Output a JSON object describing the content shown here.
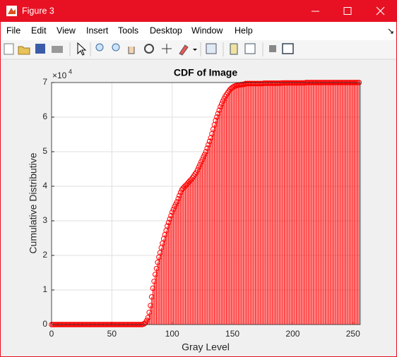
{
  "window": {
    "title": "Figure 3",
    "menu": [
      "File",
      "Edit",
      "View",
      "Insert",
      "Tools",
      "Desktop",
      "Window",
      "Help"
    ]
  },
  "chart_data": {
    "type": "stem",
    "title": "CDF of Image",
    "xlabel": "Gray Level",
    "ylabel": "Cumulative Distributive",
    "y_exponent_base": "×10",
    "y_exponent": "4",
    "color": "#ff0000",
    "grid": true,
    "xlim": [
      0,
      256
    ],
    "ylim": [
      0,
      7
    ],
    "xticks": [
      0,
      50,
      100,
      150,
      200,
      250
    ],
    "yticks": [
      0,
      1,
      2,
      3,
      4,
      5,
      6,
      7
    ],
    "x": [
      0,
      1,
      2,
      3,
      4,
      5,
      6,
      7,
      8,
      9,
      10,
      11,
      12,
      13,
      14,
      15,
      16,
      17,
      18,
      19,
      20,
      21,
      22,
      23,
      24,
      25,
      26,
      27,
      28,
      29,
      30,
      31,
      32,
      33,
      34,
      35,
      36,
      37,
      38,
      39,
      40,
      41,
      42,
      43,
      44,
      45,
      46,
      47,
      48,
      49,
      50,
      51,
      52,
      53,
      54,
      55,
      56,
      57,
      58,
      59,
      60,
      61,
      62,
      63,
      64,
      65,
      66,
      67,
      68,
      69,
      70,
      71,
      72,
      73,
      74,
      75,
      76,
      77,
      78,
      79,
      80,
      81,
      82,
      83,
      84,
      85,
      86,
      87,
      88,
      89,
      90,
      91,
      92,
      93,
      94,
      95,
      96,
      97,
      98,
      99,
      100,
      101,
      102,
      103,
      104,
      105,
      106,
      107,
      108,
      109,
      110,
      111,
      112,
      113,
      114,
      115,
      116,
      117,
      118,
      119,
      120,
      121,
      122,
      123,
      124,
      125,
      126,
      127,
      128,
      129,
      130,
      131,
      132,
      133,
      134,
      135,
      136,
      137,
      138,
      139,
      140,
      141,
      142,
      143,
      144,
      145,
      146,
      147,
      148,
      149,
      150,
      151,
      152,
      153,
      154,
      155,
      156,
      157,
      158,
      159,
      160,
      161,
      162,
      163,
      164,
      165,
      166,
      167,
      168,
      169,
      170,
      171,
      172,
      173,
      174,
      175,
      176,
      177,
      178,
      179,
      180,
      181,
      182,
      183,
      184,
      185,
      186,
      187,
      188,
      189,
      190,
      191,
      192,
      193,
      194,
      195,
      196,
      197,
      198,
      199,
      200,
      201,
      202,
      203,
      204,
      205,
      206,
      207,
      208,
      209,
      210,
      211,
      212,
      213,
      214,
      215,
      216,
      217,
      218,
      219,
      220,
      221,
      222,
      223,
      224,
      225,
      226,
      227,
      228,
      229,
      230,
      231,
      232,
      233,
      234,
      235,
      236,
      237,
      238,
      239,
      240,
      241,
      242,
      243,
      244,
      245,
      246,
      247,
      248,
      249,
      250,
      251,
      252,
      253,
      254,
      255
    ],
    "values": [
      0,
      0,
      0,
      0,
      0,
      0,
      0,
      0,
      0,
      0,
      0,
      0,
      0,
      0,
      0,
      0,
      0,
      0,
      0,
      0,
      0,
      0,
      0,
      0,
      0,
      0,
      0,
      0,
      0,
      0,
      0,
      0,
      0,
      0,
      0,
      0,
      0,
      0,
      0,
      0,
      0,
      0,
      0,
      0,
      0,
      0,
      0,
      0,
      0,
      0,
      0,
      0,
      0,
      0,
      0,
      0,
      0,
      0,
      0,
      0,
      0,
      0,
      0,
      0,
      0,
      0,
      0,
      0,
      0,
      0,
      0,
      0,
      0,
      0,
      0,
      0,
      0.01,
      0.03,
      0.06,
      0.12,
      0.2,
      0.35,
      0.55,
      0.8,
      1.05,
      1.25,
      1.45,
      1.62,
      1.8,
      1.95,
      2.08,
      2.22,
      2.35,
      2.48,
      2.6,
      2.72,
      2.85,
      2.95,
      3.05,
      3.15,
      3.25,
      3.33,
      3.41,
      3.48,
      3.55,
      3.64,
      3.73,
      3.82,
      3.9,
      3.94,
      3.98,
      4.02,
      4.05,
      4.09,
      4.13,
      4.17,
      4.2,
      4.25,
      4.3,
      4.35,
      4.4,
      4.47,
      4.55,
      4.62,
      4.7,
      4.77,
      4.85,
      4.92,
      5.0,
      5.1,
      5.2,
      5.3,
      5.4,
      5.52,
      5.65,
      5.78,
      5.9,
      6.0,
      6.1,
      6.2,
      6.3,
      6.38,
      6.46,
      6.53,
      6.6,
      6.65,
      6.7,
      6.75,
      6.8,
      6.83,
      6.86,
      6.88,
      6.9,
      6.91,
      6.92,
      6.93,
      6.93,
      6.94,
      6.94,
      6.95,
      6.95,
      6.97,
      6.97,
      6.97,
      6.97,
      6.97,
      6.97,
      6.97,
      6.97,
      6.97,
      6.97,
      6.97,
      6.97,
      6.97,
      6.97,
      6.97,
      6.98,
      6.98,
      6.98,
      6.98,
      6.98,
      6.98,
      6.98,
      6.98,
      6.98,
      6.98,
      6.98,
      6.98,
      6.98,
      6.98,
      6.98,
      6.99,
      6.99,
      6.99,
      6.99,
      6.99,
      6.99,
      6.99,
      6.99,
      6.99,
      6.99,
      6.99,
      6.99,
      6.99,
      6.99,
      6.99,
      6.99,
      6.99,
      6.99,
      6.99,
      6.99,
      7,
      7,
      7,
      7,
      7,
      7,
      7,
      7,
      7,
      7,
      7,
      7,
      7,
      7,
      7,
      7,
      7,
      7,
      7,
      7,
      7,
      7,
      7,
      7,
      7,
      7,
      7,
      7,
      7,
      7,
      7,
      7,
      7,
      7,
      7,
      7,
      7,
      7,
      7,
      7,
      7,
      7,
      7,
      7,
      7
    ]
  }
}
